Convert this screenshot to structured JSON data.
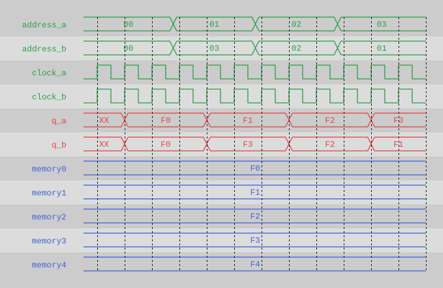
{
  "colors": {
    "bg_dark": "#cccccc",
    "bg_light": "#dcdcdc",
    "green": "#2ca048",
    "red": "#e04646",
    "blue": "#3f63d6",
    "grid": "#222222"
  },
  "signals": [
    {
      "name": "address_a",
      "kind": "bus",
      "color": "green",
      "values": [
        "00",
        "01",
        "02",
        "03"
      ]
    },
    {
      "name": "address_b",
      "kind": "bus",
      "color": "green",
      "values": [
        "00",
        "03",
        "02",
        "01"
      ]
    },
    {
      "name": "clock_a",
      "kind": "clock",
      "color": "green"
    },
    {
      "name": "clock_b",
      "kind": "clock",
      "color": "green"
    },
    {
      "name": "q_a",
      "kind": "bus",
      "color": "red",
      "values": [
        "XX",
        "F0",
        "F1",
        "F2",
        "F3"
      ]
    },
    {
      "name": "q_b",
      "kind": "bus",
      "color": "red",
      "values": [
        "XX",
        "F0",
        "F3",
        "F2",
        "F1"
      ]
    },
    {
      "name": "memory0",
      "kind": "const",
      "color": "blue",
      "values": [
        "F0"
      ]
    },
    {
      "name": "memory1",
      "kind": "const",
      "color": "blue",
      "values": [
        "F1"
      ]
    },
    {
      "name": "memory2",
      "kind": "const",
      "color": "blue",
      "values": [
        "F2"
      ]
    },
    {
      "name": "memory3",
      "kind": "const",
      "color": "blue",
      "values": [
        "F3"
      ]
    },
    {
      "name": "memory4",
      "kind": "const",
      "color": "blue",
      "values": [
        "F4"
      ]
    }
  ]
}
